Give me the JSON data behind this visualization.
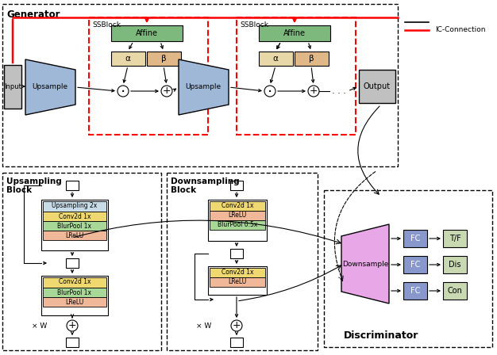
{
  "bg_color": "#ffffff",
  "red_color": "#ff0000",
  "affine_color": "#7db87d",
  "alpha_color": "#e8d8a8",
  "beta_color": "#e0b888",
  "upsample_color": "#a0b8d8",
  "input_output_color": "#c0c0c0",
  "upsampling_2x_color": "#c8dce8",
  "conv2d_color": "#f0d870",
  "blurpool_color": "#a8d898",
  "lrelu_color": "#f0b898",
  "downsample_shape_color": "#e8a8e8",
  "fc_color": "#8898cc",
  "out_label_color": "#c8d8b0",
  "generator_label": "Generator",
  "ssblock_label": "SSBlock",
  "affine_label": "Affine",
  "alpha_label": "α",
  "beta_label": "β",
  "upsample_label": "Upsample",
  "input_label": "Input",
  "output_label": "Output",
  "ic_connection_label": "IC-Connection",
  "upsampling_block_title": "Upsampling",
  "upsampling_block_sub": "Block",
  "downsampling_block_title": "Downsampling",
  "downsampling_block_sub": "Block",
  "discriminator_label": "Discriminator",
  "downsample_label": "Downsample",
  "tf_label": "T/F",
  "dis_label": "Dis",
  "con_label": "Con",
  "fc_label": "FC"
}
